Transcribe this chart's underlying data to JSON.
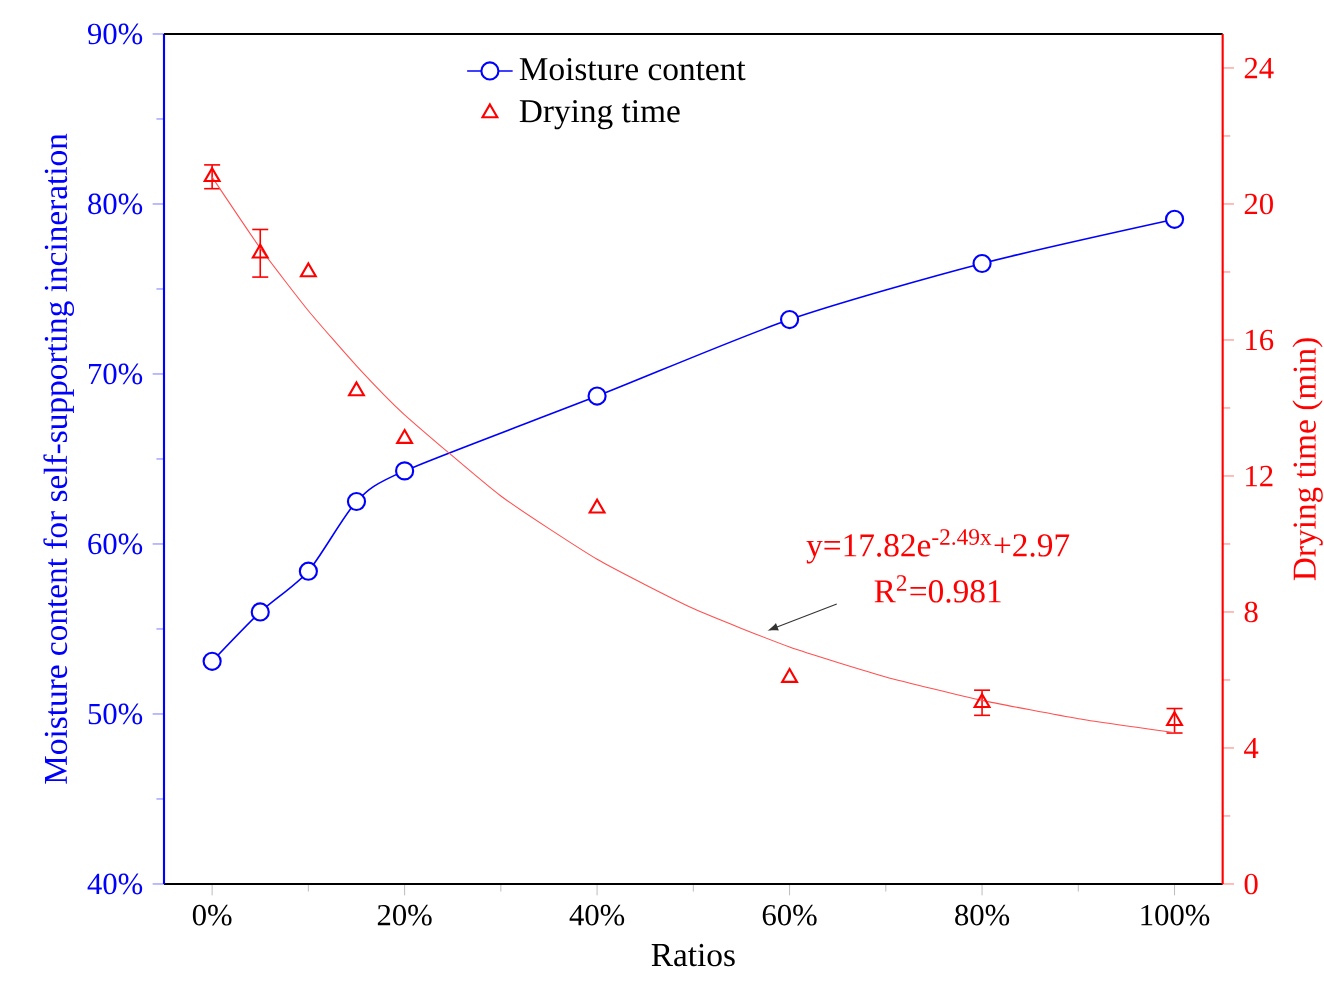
{
  "chart_data": {
    "type": "line",
    "xlabel": "Ratios",
    "ylabel": "Moisture content for self-supporting incineration",
    "y2label": "Drying time (min)",
    "x": [
      0,
      5,
      10,
      15,
      20,
      40,
      60,
      80,
      100
    ],
    "series": [
      {
        "name": "Moisture content",
        "color": "#0000ff",
        "marker": "circle",
        "axis": "y",
        "values": [
          53.1,
          56.0,
          58.4,
          62.5,
          64.3,
          68.7,
          73.2,
          76.5,
          79.1
        ]
      },
      {
        "name": "Drying time",
        "color": "#ff0000",
        "type": "scatter",
        "marker": "triangle",
        "axis": "y2",
        "values": [
          20.8,
          18.55,
          18.0,
          14.5,
          13.1,
          11.05,
          6.07,
          5.33,
          4.8
        ],
        "errors": [
          0.35,
          0.7,
          null,
          null,
          null,
          null,
          null,
          0.37,
          0.36
        ]
      },
      {
        "color": "#ff5050",
        "marker": "none",
        "axis": "y2",
        "x": [
          0,
          5,
          10,
          15,
          20,
          30,
          40,
          50,
          60,
          70,
          80,
          90,
          100
        ],
        "values": [
          20.79,
          18.7,
          16.86,
          15.24,
          13.8,
          11.41,
          9.55,
          8.1,
          6.97,
          6.09,
          5.4,
          4.86,
          4.45
        ]
      }
    ],
    "xlim": [
      -5,
      105
    ],
    "xticks": [
      {
        "value": 0,
        "label": "0%"
      },
      {
        "value": 20,
        "label": "20%"
      },
      {
        "value": 40,
        "label": "40%"
      },
      {
        "value": 60,
        "label": "60%"
      },
      {
        "value": 80,
        "label": "80%"
      },
      {
        "value": 100,
        "label": "100%"
      }
    ],
    "ylim": [
      40,
      90
    ],
    "yticks": [
      {
        "value": 40,
        "label": "40%"
      },
      {
        "value": 50,
        "label": "50%"
      },
      {
        "value": 60,
        "label": "60%"
      },
      {
        "value": 70,
        "label": "70%"
      },
      {
        "value": 80,
        "label": "80%"
      },
      {
        "value": 90,
        "label": "90%"
      }
    ],
    "y2lim": [
      0,
      25
    ],
    "y2ticks": [
      0,
      4,
      8,
      12,
      16,
      20,
      24
    ],
    "annotations": [
      {
        "text": "y=17.82e$^{-2.49x}$+2.97",
        "x": 57.7,
        "y": 54.9
      },
      "R$^{2}$=0.981"
    ],
    "legend": "top",
    "grid": false
  }
}
